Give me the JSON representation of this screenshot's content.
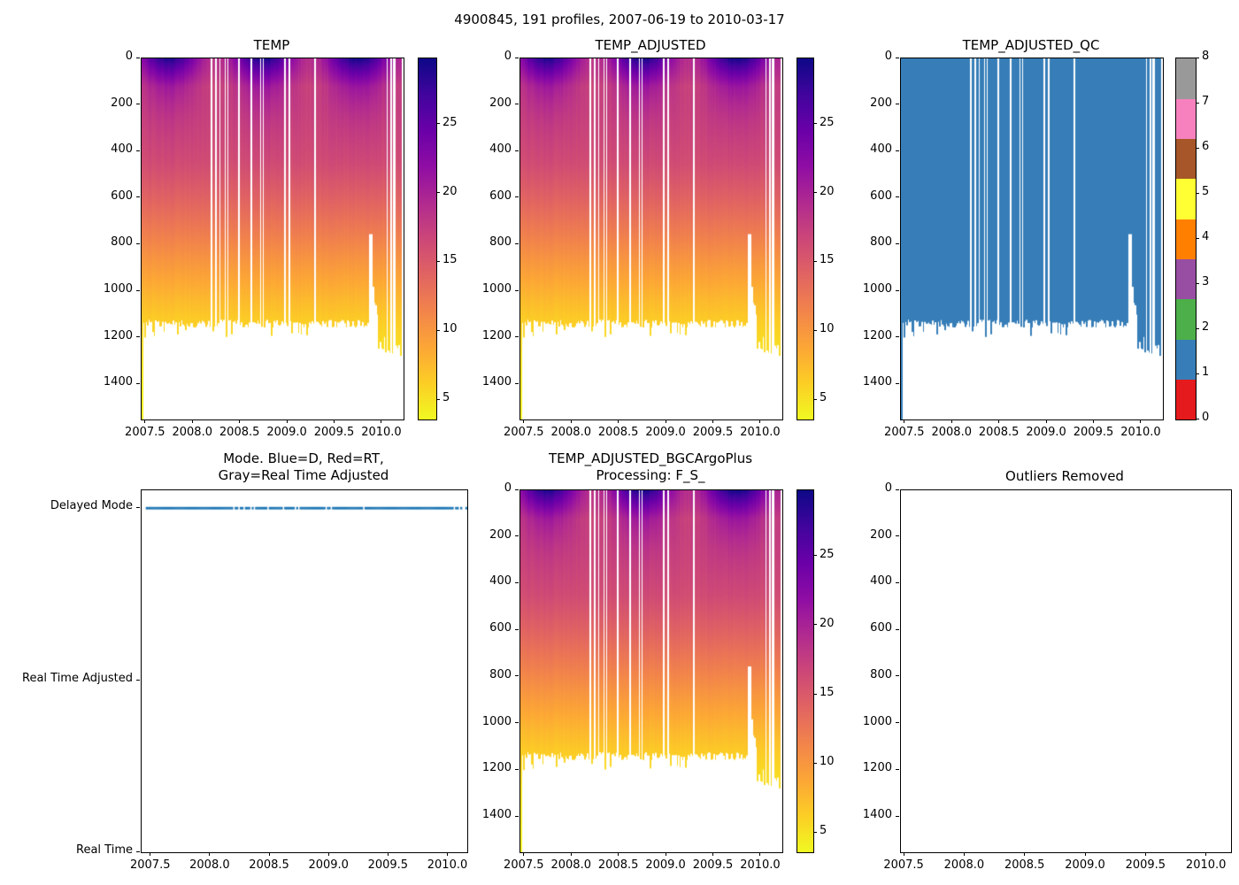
{
  "figure": {
    "suptitle": "4900845, 191 profiles, 2007-06-19 to 2010-03-17",
    "background": "#ffffff"
  },
  "palette": {
    "plasma_stops": [
      "#0d0887",
      "#41049d",
      "#6a00a8",
      "#8f0da4",
      "#b12a90",
      "#cc4778",
      "#e16462",
      "#f2844b",
      "#fca636",
      "#fcce25",
      "#f0f921"
    ],
    "qc_fill_color": "#377eb8",
    "mode_line_color": "#1f77b4",
    "axes_color": "#000000"
  },
  "chart_data": [
    {
      "id": "TEMP",
      "type": "heatmap",
      "title": "TEMP",
      "xlim": [
        2007.455,
        2010.225
      ],
      "ylim_depth_m": [
        0,
        1551
      ],
      "x_tick_labels": [
        "2007.5",
        "2008.0",
        "2008.5",
        "2009.0",
        "2009.5",
        "2010.0"
      ],
      "y_tick_labels": [
        "0",
        "200",
        "400",
        "600",
        "800",
        "1000",
        "1200",
        "1400"
      ],
      "colorbar": {
        "colormap": "plasma_r",
        "vmin_C": 3.6,
        "vmax_C": 29.8,
        "tick_labels": [
          "25",
          "20",
          "15",
          "10",
          "5"
        ]
      }
    },
    {
      "id": "TEMP_ADJUSTED",
      "type": "heatmap",
      "title": "TEMP_ADJUSTED",
      "xlim": [
        2007.455,
        2010.225
      ],
      "ylim_depth_m": [
        0,
        1551
      ],
      "x_tick_labels": [
        "2007.5",
        "2008.0",
        "2008.5",
        "2009.0",
        "2009.5",
        "2010.0"
      ],
      "y_tick_labels": [
        "0",
        "200",
        "400",
        "600",
        "800",
        "1000",
        "1200",
        "1400"
      ],
      "colorbar": {
        "colormap": "plasma_r",
        "vmin_C": 3.6,
        "vmax_C": 29.8,
        "tick_labels": [
          "25",
          "20",
          "15",
          "10",
          "5"
        ]
      }
    },
    {
      "id": "TEMP_ADJUSTED_QC",
      "type": "heatmap",
      "title": "TEMP_ADJUSTED_QC",
      "xlim": [
        2007.455,
        2010.225
      ],
      "ylim_depth_m": [
        0,
        1551
      ],
      "qc_constant_value": 1,
      "x_tick_labels": [
        "2007.5",
        "2008.0",
        "2008.5",
        "2009.0",
        "2009.5",
        "2010.0"
      ],
      "y_tick_labels": [
        "0",
        "200",
        "400",
        "600",
        "800",
        "1000",
        "1200",
        "1400"
      ],
      "colorbar": {
        "type": "discrete",
        "vmin": 0,
        "vmax": 8,
        "n_segments": 9,
        "segment_colors": [
          "#e41a1c",
          "#377eb8",
          "#4daf4a",
          "#984ea3",
          "#ff7f00",
          "#ffff33",
          "#a65628",
          "#f781bf",
          "#999999"
        ],
        "tick_labels": [
          "0",
          "1",
          "2",
          "3",
          "4",
          "5",
          "6",
          "7",
          "8"
        ]
      }
    },
    {
      "id": "MODE",
      "type": "line",
      "title_lines": [
        "Mode. Blue=D, Red=RT,",
        "Gray=Real Time Adjusted"
      ],
      "xlim": [
        2007.42,
        2010.16
      ],
      "x_tick_labels": [
        "2007.5",
        "2008.0",
        "2008.5",
        "2009.0",
        "2009.5",
        "2010.0"
      ],
      "y_category_labels": [
        "Delayed Mode",
        "Real Time Adjusted",
        "Real Time"
      ],
      "series": [
        {
          "name": "mode",
          "constant_category": "Delayed Mode",
          "color": "#1f77b4",
          "style": "dotted"
        }
      ]
    },
    {
      "id": "TEMP_ADJUSTED_BGCArgoPlus",
      "type": "heatmap",
      "title_lines": [
        "TEMP_ADJUSTED_BGCArgoPlus",
        "Processing: F_S_"
      ],
      "xlim": [
        2007.455,
        2010.225
      ],
      "ylim_depth_m": [
        0,
        1551
      ],
      "x_tick_labels": [
        "2007.5",
        "2008.0",
        "2008.5",
        "2009.0",
        "2009.5",
        "2010.0"
      ],
      "y_tick_labels": [
        "0",
        "200",
        "400",
        "600",
        "800",
        "1000",
        "1200",
        "1400"
      ],
      "colorbar": {
        "colormap": "plasma_r",
        "vmin_C": 3.6,
        "vmax_C": 29.8,
        "tick_labels": [
          "25",
          "20",
          "15",
          "10",
          "5"
        ]
      }
    },
    {
      "id": "OUTLIERS",
      "type": "empty",
      "title": "Outliers Removed",
      "xlim": [
        2007.47,
        2010.2
      ],
      "ylim_depth_m": [
        0,
        1551
      ],
      "x_tick_labels": [
        "2007.5",
        "2008.0",
        "2008.5",
        "2009.0",
        "2009.5",
        "2010.0"
      ],
      "y_tick_labels": [
        "0",
        "200",
        "400",
        "600",
        "800",
        "1000",
        "1200",
        "1400"
      ]
    }
  ],
  "profile_model": {
    "n_profiles": 191,
    "time_start": 2007.463,
    "time_end": 2010.195,
    "depth_axis_max_m": 1551,
    "vmin_C": 3.6,
    "vmax_C": 29.8,
    "gap_times": [
      2008.2,
      2008.24,
      2008.28,
      2008.34,
      2008.37,
      2008.49,
      2008.61,
      2008.71,
      2008.74,
      2008.97,
      2009.01,
      2009.29,
      2010.05,
      2010.09,
      2010.13
    ],
    "temp_depth_profile": {
      "depths": [
        0,
        120,
        250,
        450,
        600,
        750,
        900,
        1020,
        1120,
        1220,
        1380,
        1551
      ],
      "temps": [
        23.5,
        18.8,
        17.6,
        16.2,
        14.2,
        12.0,
        9.6,
        7.8,
        6.4,
        5.4,
        4.6,
        4.0
      ]
    },
    "seasonal": {
      "amplitude_C": 5.2,
      "decay_depth_m": 125,
      "peak_year_fraction": 0.74,
      "warming_trend_C_per_yr": 0.35
    },
    "typical_bottom_depth_m": [
      1122,
      1160
    ],
    "first_profile_depth_m": 1551,
    "shallow_event": {
      "time_range": [
        2009.86,
        2009.9
      ],
      "depth_m": 755
    },
    "transition_section": {
      "time_range": [
        2009.9,
        2009.96
      ],
      "depth_start_m": 950
    },
    "deep_section": {
      "time_start": 2009.96,
      "depth_range_m": [
        1195,
        1280
      ]
    }
  }
}
